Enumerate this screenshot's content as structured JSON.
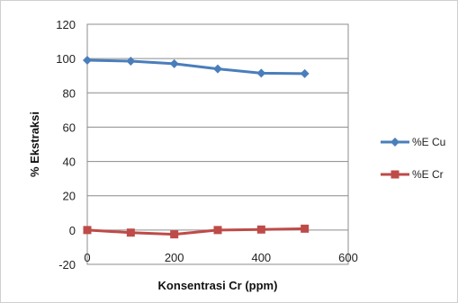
{
  "chart_data": {
    "type": "line",
    "xlabel": "Konsentrasi Cr (ppm)",
    "ylabel": "% Ekstraksi",
    "xlim": [
      0,
      600
    ],
    "ylim": [
      -20,
      120
    ],
    "x_ticks": [
      0,
      200,
      400,
      600
    ],
    "y_ticks": [
      -20,
      0,
      20,
      40,
      60,
      80,
      100,
      120
    ],
    "grid": "horizontal",
    "legend_position": "right",
    "series": [
      {
        "name": "%E Cu",
        "color": "#4a7ebb",
        "marker": "diamond",
        "x": [
          0,
          100,
          200,
          300,
          400,
          500
        ],
        "y": [
          99,
          98.5,
          97,
          94,
          91.5,
          91.2
        ]
      },
      {
        "name": "%E Cr",
        "color": "#be4b48",
        "marker": "square",
        "x": [
          0,
          100,
          200,
          300,
          400,
          500
        ],
        "y": [
          0,
          -1.5,
          -2.5,
          0,
          0.3,
          0.8
        ]
      }
    ]
  }
}
